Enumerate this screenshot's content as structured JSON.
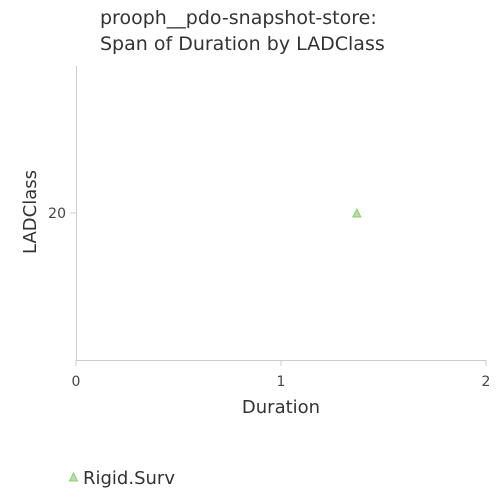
{
  "chart_data": {
    "type": "scatter",
    "title_lines": [
      "prooph__pdo-snapshot-store:",
      "Span of Duration by LADClass"
    ],
    "xlabel": "Duration",
    "ylabel": "LADClass",
    "xlim": [
      0,
      2
    ],
    "x_ticks": [
      0,
      1,
      2
    ],
    "y_ticks": [
      20
    ],
    "grid": false,
    "legend_position": "bottom-left",
    "series": [
      {
        "name": "Rigid.Surv",
        "marker": "triangle",
        "color": "#b5e0a3",
        "stroke": "#8ccf72",
        "points": [
          {
            "x": 1.37,
            "y": 20
          }
        ]
      }
    ]
  }
}
